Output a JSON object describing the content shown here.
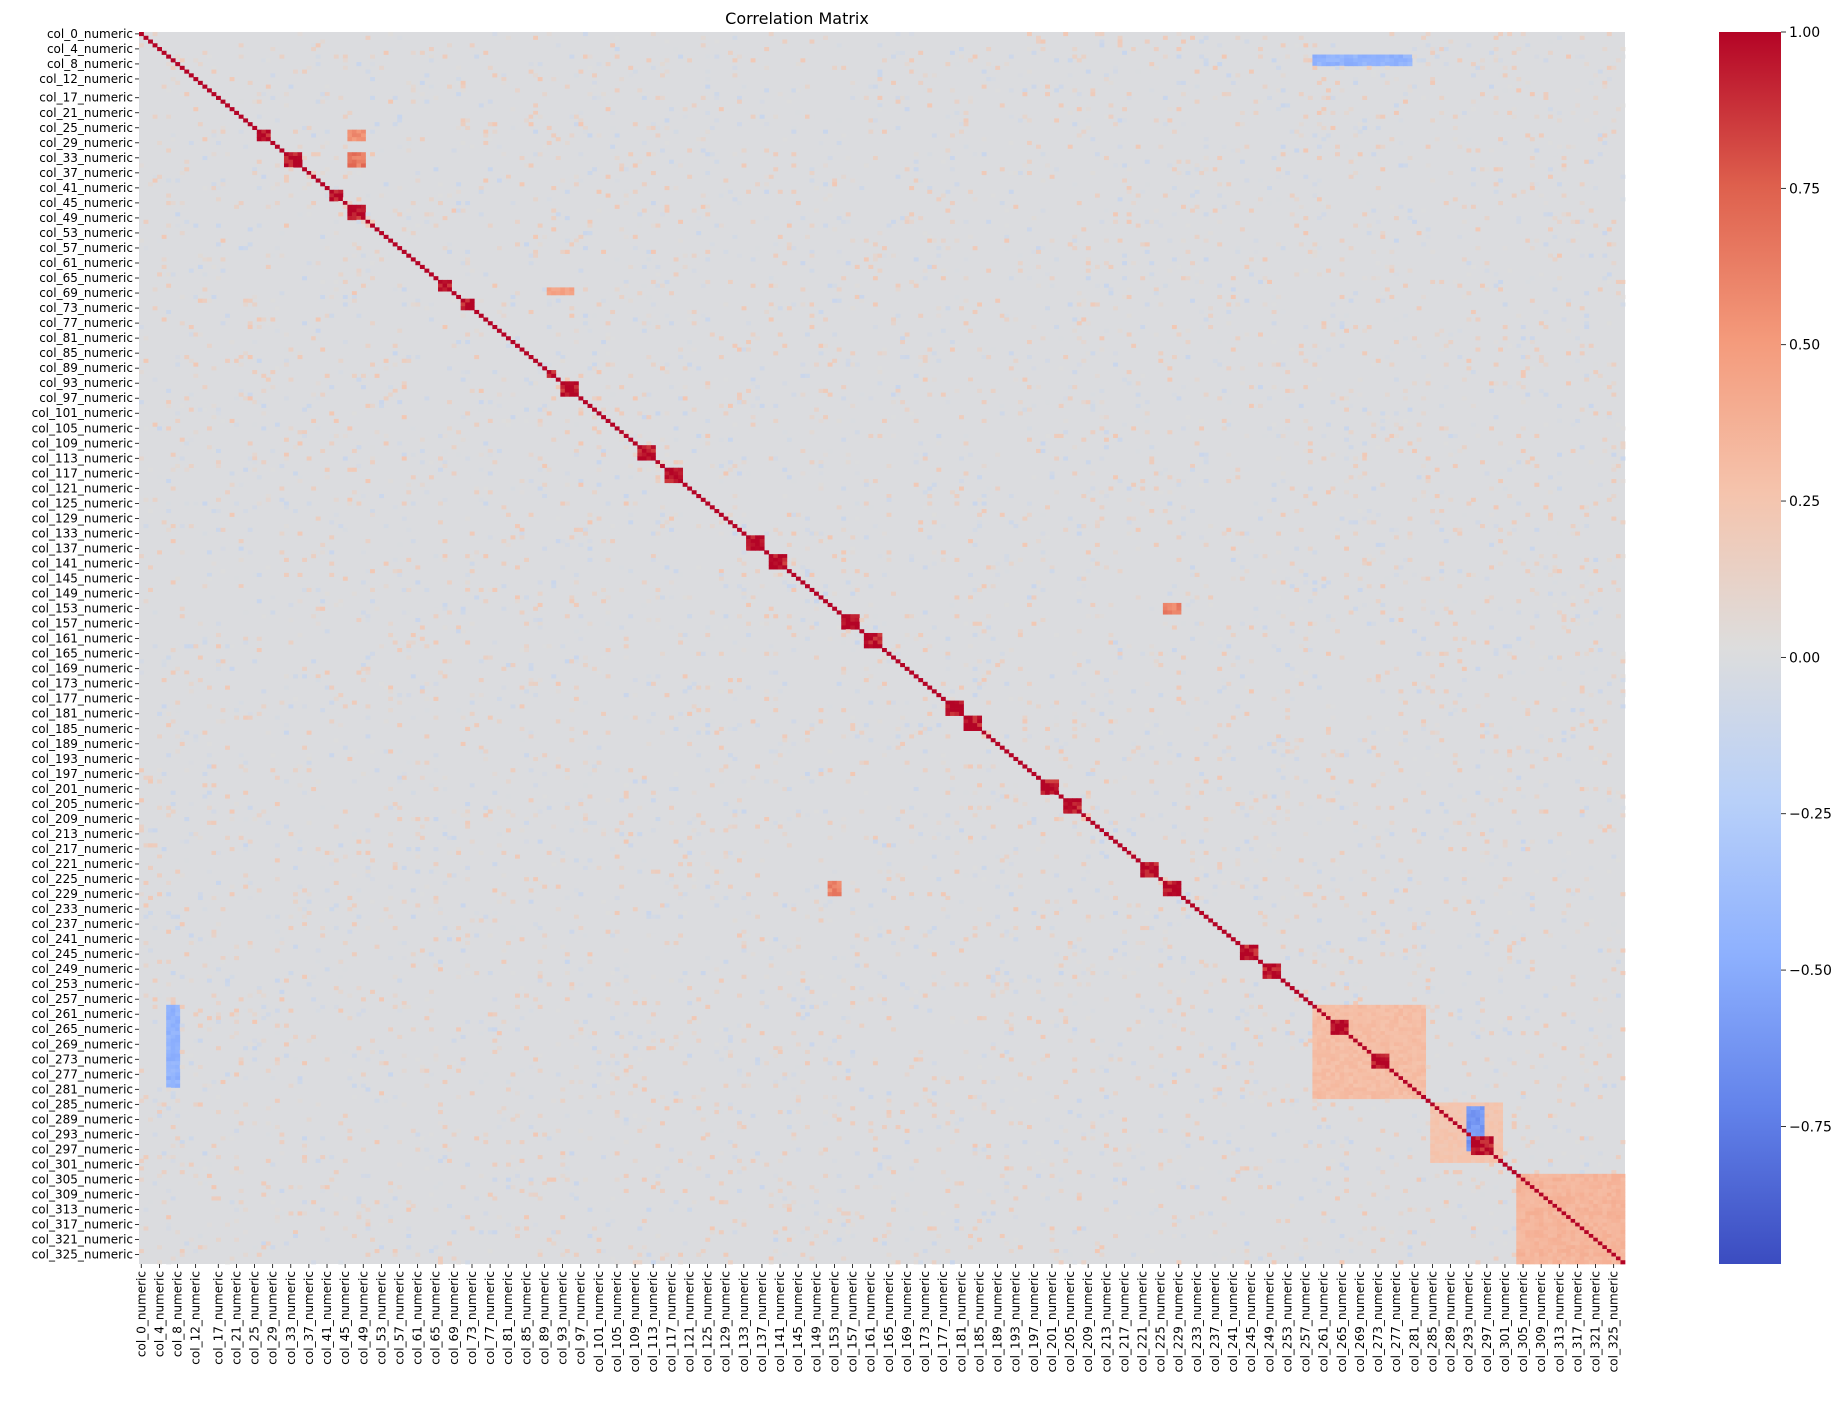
{
  "chart_data": {
    "type": "heatmap",
    "title": "Correlation Matrix",
    "xlabel": "",
    "ylabel": "",
    "n_columns": 328,
    "column_name_pattern": "col_{i}_numeric",
    "row_labels": [
      "col_0_numeric",
      "col_4_numeric",
      "col_8_numeric",
      "col_12_numeric",
      "col_17_numeric",
      "col_21_numeric",
      "col_25_numeric",
      "col_29_numeric",
      "col_33_numeric",
      "col_37_numeric",
      "col_41_numeric",
      "col_45_numeric",
      "col_49_numeric",
      "col_53_numeric",
      "col_57_numeric",
      "col_61_numeric",
      "col_65_numeric",
      "col_69_numeric",
      "col_73_numeric",
      "col_77_numeric",
      "col_81_numeric",
      "col_85_numeric",
      "col_89_numeric",
      "col_93_numeric",
      "col_97_numeric",
      "col_101_numeric",
      "col_105_numeric",
      "col_109_numeric",
      "col_113_numeric",
      "col_117_numeric",
      "col_121_numeric",
      "col_125_numeric",
      "col_129_numeric",
      "col_133_numeric",
      "col_137_numeric",
      "col_141_numeric",
      "col_145_numeric",
      "col_149_numeric",
      "col_153_numeric",
      "col_157_numeric",
      "col_161_numeric",
      "col_165_numeric",
      "col_169_numeric",
      "col_173_numeric",
      "col_177_numeric",
      "col_181_numeric",
      "col_185_numeric",
      "col_189_numeric",
      "col_193_numeric",
      "col_197_numeric",
      "col_201_numeric",
      "col_205_numeric",
      "col_209_numeric",
      "col_213_numeric",
      "col_217_numeric",
      "col_221_numeric",
      "col_225_numeric",
      "col_229_numeric",
      "col_233_numeric",
      "col_237_numeric",
      "col_241_numeric",
      "col_245_numeric",
      "col_249_numeric",
      "col_253_numeric",
      "col_257_numeric",
      "col_261_numeric",
      "col_265_numeric",
      "col_269_numeric",
      "col_273_numeric",
      "col_277_numeric",
      "col_281_numeric",
      "col_285_numeric",
      "col_289_numeric",
      "col_293_numeric",
      "col_297_numeric",
      "col_301_numeric",
      "col_305_numeric",
      "col_309_numeric",
      "col_313_numeric",
      "col_317_numeric",
      "col_321_numeric",
      "col_325_numeric"
    ],
    "col_labels": [
      "col_0_numeric",
      "col_4_numeric",
      "col_8_numeric",
      "col_12_numeric",
      "col_17_numeric",
      "col_21_numeric",
      "col_25_numeric",
      "col_29_numeric",
      "col_33_numeric",
      "col_37_numeric",
      "col_41_numeric",
      "col_45_numeric",
      "col_49_numeric",
      "col_53_numeric",
      "col_57_numeric",
      "col_61_numeric",
      "col_65_numeric",
      "col_69_numeric",
      "col_73_numeric",
      "col_77_numeric",
      "col_81_numeric",
      "col_85_numeric",
      "col_89_numeric",
      "col_93_numeric",
      "col_97_numeric",
      "col_101_numeric",
      "col_105_numeric",
      "col_109_numeric",
      "col_113_numeric",
      "col_117_numeric",
      "col_121_numeric",
      "col_125_numeric",
      "col_129_numeric",
      "col_133_numeric",
      "col_137_numeric",
      "col_141_numeric",
      "col_145_numeric",
      "col_149_numeric",
      "col_153_numeric",
      "col_157_numeric",
      "col_161_numeric",
      "col_165_numeric",
      "col_169_numeric",
      "col_173_numeric",
      "col_177_numeric",
      "col_181_numeric",
      "col_185_numeric",
      "col_189_numeric",
      "col_193_numeric",
      "col_197_numeric",
      "col_201_numeric",
      "col_205_numeric",
      "col_209_numeric",
      "col_213_numeric",
      "col_217_numeric",
      "col_221_numeric",
      "col_225_numeric",
      "col_229_numeric",
      "col_233_numeric",
      "col_237_numeric",
      "col_241_numeric",
      "col_245_numeric",
      "col_249_numeric",
      "col_253_numeric",
      "col_257_numeric",
      "col_261_numeric",
      "col_265_numeric",
      "col_269_numeric",
      "col_273_numeric",
      "col_277_numeric",
      "col_281_numeric",
      "col_285_numeric",
      "col_289_numeric",
      "col_293_numeric",
      "col_297_numeric",
      "col_301_numeric",
      "col_305_numeric",
      "col_309_numeric",
      "col_313_numeric",
      "col_317_numeric",
      "col_321_numeric",
      "col_325_numeric"
    ],
    "colormap": "coolwarm",
    "value_range": [
      -0.97,
      1.0
    ],
    "colorbar_ticks": [
      1.0,
      0.75,
      0.5,
      0.25,
      0.0,
      -0.25,
      -0.5,
      -0.75
    ],
    "colorbar_tick_labels": [
      "1.00",
      "0.75",
      "0.50",
      "0.25",
      "0.00",
      "−0.25",
      "−0.50",
      "−0.75"
    ],
    "diagonal_value": 1.0,
    "background_value": 0.0,
    "high_correlation_blocks": [
      {
        "rows": [
          26,
          28
        ],
        "cols": [
          26,
          28
        ],
        "value": 0.95
      },
      {
        "rows": [
          32,
          35
        ],
        "cols": [
          32,
          35
        ],
        "value": 0.95
      },
      {
        "rows": [
          42,
          44
        ],
        "cols": [
          42,
          44
        ],
        "value": 0.95
      },
      {
        "rows": [
          46,
          49
        ],
        "cols": [
          46,
          49
        ],
        "value": 0.95
      },
      {
        "rows": [
          66,
          68
        ],
        "cols": [
          66,
          68
        ],
        "value": 0.95
      },
      {
        "rows": [
          71,
          73
        ],
        "cols": [
          71,
          73
        ],
        "value": 0.95
      },
      {
        "rows": [
          90,
          91
        ],
        "cols": [
          90,
          91
        ],
        "value": 0.95
      },
      {
        "rows": [
          93,
          96
        ],
        "cols": [
          93,
          96
        ],
        "value": 0.95
      },
      {
        "rows": [
          110,
          113
        ],
        "cols": [
          110,
          113
        ],
        "value": 0.95
      },
      {
        "rows": [
          116,
          119
        ],
        "cols": [
          116,
          119
        ],
        "value": 0.95
      },
      {
        "rows": [
          134,
          137
        ],
        "cols": [
          134,
          137
        ],
        "value": 0.95
      },
      {
        "rows": [
          139,
          142
        ],
        "cols": [
          139,
          142
        ],
        "value": 0.95
      },
      {
        "rows": [
          155,
          158
        ],
        "cols": [
          155,
          158
        ],
        "value": 0.95
      },
      {
        "rows": [
          160,
          163
        ],
        "cols": [
          160,
          163
        ],
        "value": 0.95
      },
      {
        "rows": [
          178,
          181
        ],
        "cols": [
          178,
          181
        ],
        "value": 0.95
      },
      {
        "rows": [
          182,
          185
        ],
        "cols": [
          182,
          185
        ],
        "value": 0.95
      },
      {
        "rows": [
          199,
          202
        ],
        "cols": [
          199,
          202
        ],
        "value": 0.95
      },
      {
        "rows": [
          204,
          207
        ],
        "cols": [
          204,
          207
        ],
        "value": 0.95
      },
      {
        "rows": [
          221,
          224
        ],
        "cols": [
          221,
          224
        ],
        "value": 0.95
      },
      {
        "rows": [
          226,
          229
        ],
        "cols": [
          226,
          229
        ],
        "value": 0.95
      },
      {
        "rows": [
          243,
          246
        ],
        "cols": [
          243,
          246
        ],
        "value": 0.95
      },
      {
        "rows": [
          248,
          251
        ],
        "cols": [
          248,
          251
        ],
        "value": 0.95
      },
      {
        "rows": [
          263,
          266
        ],
        "cols": [
          263,
          266
        ],
        "value": 0.95
      },
      {
        "rows": [
          272,
          275
        ],
        "cols": [
          272,
          275
        ],
        "value": 0.95
      },
      {
        "rows": [
          294,
          298
        ],
        "cols": [
          294,
          298
        ],
        "value": 0.95
      }
    ],
    "moderate_regions": [
      {
        "rows": [
          259,
          283
        ],
        "cols": [
          259,
          283
        ],
        "value": 0.3
      },
      {
        "rows": [
          285,
          300
        ],
        "cols": [
          285,
          300
        ],
        "value": 0.25
      },
      {
        "rows": [
          304,
          327
        ],
        "cols": [
          304,
          327
        ],
        "value": 0.35
      },
      {
        "rows": [
          26,
          28
        ],
        "cols": [
          46,
          49
        ],
        "value": 0.55
      },
      {
        "rows": [
          32,
          35
        ],
        "cols": [
          46,
          49
        ],
        "value": 0.65
      },
      {
        "rows": [
          152,
          154
        ],
        "cols": [
          226,
          229
        ],
        "value": 0.6
      },
      {
        "rows": [
          226,
          229
        ],
        "cols": [
          152,
          154
        ],
        "value": 0.6
      },
      {
        "rows": [
          68,
          69
        ],
        "cols": [
          90,
          95
        ],
        "value": 0.45
      }
    ],
    "negative_regions": [
      {
        "rows": [
          6,
          8
        ],
        "cols": [
          259,
          280
        ],
        "value": -0.45
      },
      {
        "rows": [
          259,
          280
        ],
        "cols": [
          6,
          8
        ],
        "value": -0.45
      },
      {
        "rows": [
          286,
          297
        ],
        "cols": [
          293,
          296
        ],
        "value": -0.6
      }
    ]
  }
}
